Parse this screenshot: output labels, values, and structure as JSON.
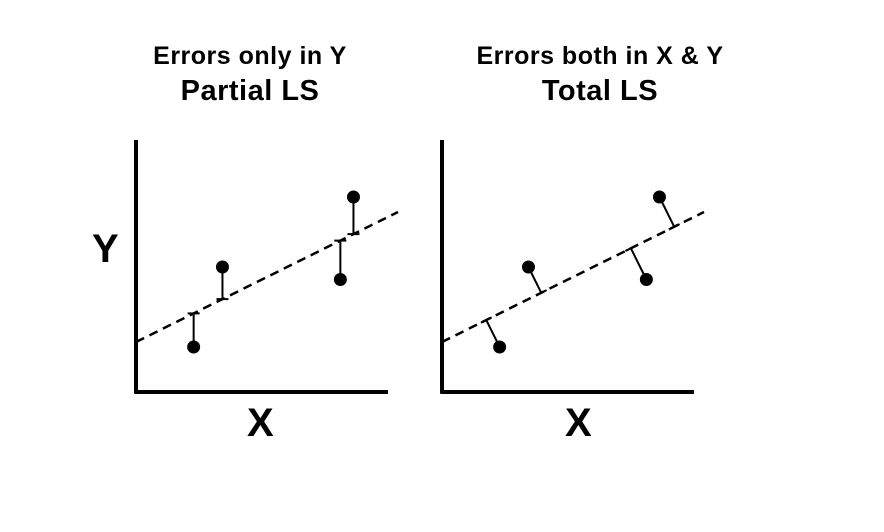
{
  "y_axis_label": "Y",
  "colors": {
    "ink": "#000000",
    "background": "#ffffff"
  },
  "panels": [
    {
      "id": "left",
      "title_line1": "Errors only in Y",
      "title_line2": "Partial LS",
      "x_axis_label": "X",
      "residual_style": "vertical",
      "line": {
        "x": [
          0,
          10
        ],
        "y": [
          2,
          7.2
        ]
      },
      "points": [
        {
          "x": 2.2,
          "y": 1.8
        },
        {
          "x": 3.3,
          "y": 5.0
        },
        {
          "x": 7.8,
          "y": 4.5
        },
        {
          "x": 8.3,
          "y": 7.8
        }
      ]
    },
    {
      "id": "right",
      "title_line1": "Errors both in X & Y",
      "title_line2": "Total LS",
      "x_axis_label": "X",
      "residual_style": "perpendicular",
      "line": {
        "x": [
          0,
          10
        ],
        "y": [
          2,
          7.2
        ]
      },
      "points": [
        {
          "x": 2.2,
          "y": 1.8
        },
        {
          "x": 3.3,
          "y": 5.0
        },
        {
          "x": 7.8,
          "y": 4.5
        },
        {
          "x": 8.3,
          "y": 7.8
        }
      ]
    }
  ]
}
